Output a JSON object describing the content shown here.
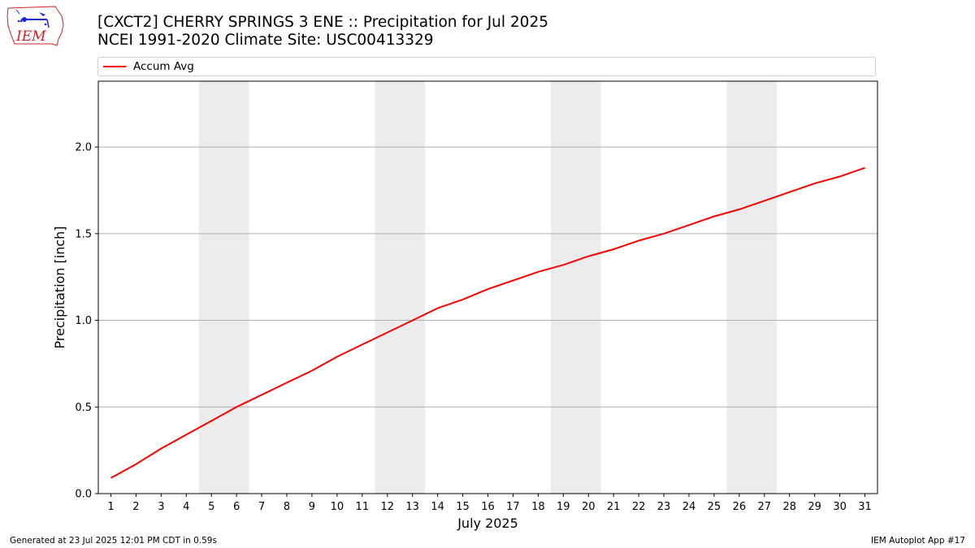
{
  "title_line1": "[CXCT2] CHERRY SPRINGS 3 ENE :: Precipitation for Jul 2025",
  "title_line2": "NCEI 1991-2020 Climate Site: USC00413329",
  "logo_text": "IEM",
  "footer_left": "Generated at 23 Jul 2025 12:01 PM CDT in 0.59s",
  "footer_right": "IEM Autoplot App #17",
  "colors": {
    "line": "#ff0000",
    "weekend_band": "#ececec",
    "grid": "#b0b0b0",
    "logo_red": "#cc2222",
    "logo_blue": "#1a2ad0"
  },
  "chart_data": {
    "type": "line",
    "xlabel": "July 2025",
    "ylabel": "Precipitation [inch]",
    "xlim": [
      0.5,
      31.5
    ],
    "ylim": [
      0,
      2.38
    ],
    "yticks": [
      0.0,
      0.5,
      1.0,
      1.5,
      2.0
    ],
    "ytick_labels": [
      "0.0",
      "0.5",
      "1.0",
      "1.5",
      "2.0"
    ],
    "xticks": [
      1,
      2,
      3,
      4,
      5,
      6,
      7,
      8,
      9,
      10,
      11,
      12,
      13,
      14,
      15,
      16,
      17,
      18,
      19,
      20,
      21,
      22,
      23,
      24,
      25,
      26,
      27,
      28,
      29,
      30,
      31
    ],
    "xtick_labels": [
      "1",
      "2",
      "3",
      "4",
      "5",
      "6",
      "7",
      "8",
      "9",
      "10",
      "11",
      "12",
      "13",
      "14",
      "15",
      "16",
      "17",
      "18",
      "19",
      "20",
      "21",
      "22",
      "23",
      "24",
      "25",
      "26",
      "27",
      "28",
      "29",
      "30",
      "31"
    ],
    "grid": "horizontal",
    "legend_position": "top",
    "weekend_shading": [
      [
        4.5,
        6.5
      ],
      [
        11.5,
        13.5
      ],
      [
        18.5,
        20.5
      ],
      [
        25.5,
        27.5
      ]
    ],
    "series": [
      {
        "name": "Accum Avg",
        "x": [
          1,
          2,
          3,
          4,
          5,
          6,
          7,
          8,
          9,
          10,
          11,
          12,
          13,
          14,
          15,
          16,
          17,
          18,
          19,
          20,
          21,
          22,
          23,
          24,
          25,
          26,
          27,
          28,
          29,
          30,
          31
        ],
        "values": [
          0.09,
          0.17,
          0.26,
          0.34,
          0.42,
          0.5,
          0.57,
          0.64,
          0.71,
          0.79,
          0.86,
          0.93,
          1.0,
          1.07,
          1.12,
          1.18,
          1.23,
          1.28,
          1.32,
          1.37,
          1.41,
          1.46,
          1.5,
          1.55,
          1.6,
          1.64,
          1.69,
          1.74,
          1.79,
          1.83,
          1.88
        ]
      }
    ]
  }
}
